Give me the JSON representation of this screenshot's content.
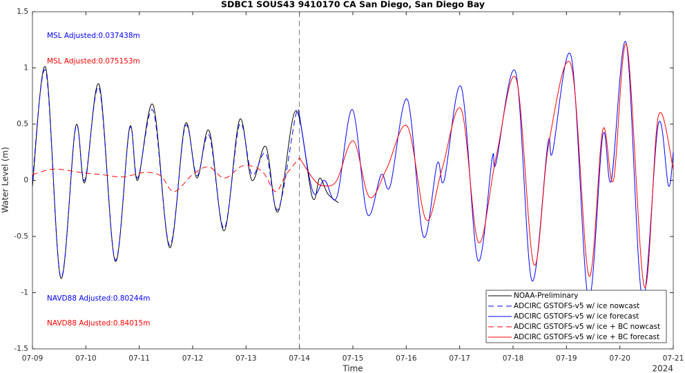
{
  "chart_data": {
    "type": "line",
    "title": "SDBC1 SOUS43 9410170 CA San Diego, San Diego Bay",
    "xlabel": "Time",
    "ylabel": "Water Level (m)",
    "year_label": "2024",
    "xlim": [
      0,
      12
    ],
    "ylim": [
      -1.5,
      1.5
    ],
    "xticks": [
      {
        "value": 0,
        "label": "07-09"
      },
      {
        "value": 1,
        "label": "07-10"
      },
      {
        "value": 2,
        "label": "07-11"
      },
      {
        "value": 3,
        "label": "07-12"
      },
      {
        "value": 4,
        "label": "07-13"
      },
      {
        "value": 5,
        "label": "07-14"
      },
      {
        "value": 6,
        "label": "07-15"
      },
      {
        "value": 7,
        "label": "07-16"
      },
      {
        "value": 8,
        "label": "07-17"
      },
      {
        "value": 9,
        "label": "07-18"
      },
      {
        "value": 10,
        "label": "07-19"
      },
      {
        "value": 11,
        "label": "07-20"
      },
      {
        "value": 12,
        "label": "07-21"
      }
    ],
    "yticks": [
      -1.5,
      -1,
      -0.5,
      0,
      0.5,
      1,
      1.5
    ],
    "vline": 5,
    "legend": "lower right",
    "annotations": [
      {
        "text": "MSL Adjusted:0.037438m",
        "color": "#0000ff"
      },
      {
        "text": "MSL Adjusted:0.075153m",
        "color": "#ff0000"
      },
      {
        "text": "NAVD88 Adjusted:0.80244m",
        "color": "#0000ff"
      },
      {
        "text": "NAVD88 Adjusted:0.84015m",
        "color": "#ff0000"
      }
    ],
    "series": [
      {
        "name": "NOAA-Preliminary",
        "color": "#000000",
        "dash": false,
        "x": [
          0,
          0.25,
          0.53,
          0.81,
          0.98,
          1.25,
          1.55,
          1.82,
          1.97,
          2.26,
          2.57,
          2.86,
          3.08,
          3.31,
          3.59,
          3.88,
          4.11,
          4.37,
          4.6,
          4.93,
          5.24,
          5.38,
          5.53,
          5.73
        ],
        "values": [
          -0.05,
          1.0,
          -0.87,
          0.48,
          -0.02,
          0.85,
          -0.72,
          0.47,
          0.0,
          0.67,
          -0.6,
          0.5,
          0.02,
          0.44,
          -0.45,
          0.54,
          0.0,
          0.3,
          -0.28,
          0.62,
          -0.15,
          0.02,
          -0.12,
          -0.2
        ]
      },
      {
        "name": "ADCIRC GSTOFS-v5 w/ ice nowcast",
        "color": "#0000ff",
        "dash": true,
        "x": [
          0,
          0.25,
          0.53,
          0.81,
          0.98,
          1.25,
          1.55,
          1.82,
          1.97,
          2.26,
          2.57,
          2.86,
          3.08,
          3.31,
          3.59,
          3.88,
          4.11,
          4.37,
          4.6,
          4.93,
          5.0
        ],
        "values": [
          0.0,
          0.97,
          -0.86,
          0.47,
          0.0,
          0.82,
          -0.71,
          0.46,
          0.02,
          0.62,
          -0.58,
          0.48,
          0.04,
          0.4,
          -0.43,
          0.5,
          0.05,
          0.24,
          -0.26,
          0.58,
          0.55
        ]
      },
      {
        "name": "ADCIRC GSTOFS-v5 w/ ice forecast",
        "color": "#0000ff",
        "dash": false,
        "x": [
          5.0,
          5.25,
          5.47,
          5.7,
          5.99,
          6.27,
          6.53,
          6.7,
          7.02,
          7.32,
          7.58,
          7.71,
          8.03,
          8.34,
          8.61,
          8.68,
          9.05,
          9.35,
          9.65,
          9.74,
          10.09,
          10.41,
          10.68,
          10.84,
          11.12,
          11.42,
          11.72,
          11.91,
          12.0
        ],
        "values": [
          0.58,
          -0.1,
          0.0,
          -0.15,
          0.63,
          -0.3,
          0.05,
          -0.05,
          0.72,
          -0.5,
          0.15,
          0.0,
          0.83,
          -0.71,
          0.2,
          0.15,
          0.96,
          -0.89,
          0.32,
          0.25,
          1.1,
          -1.05,
          0.4,
          0.0,
          1.22,
          -1.05,
          0.5,
          -0.05,
          0.25
        ]
      },
      {
        "name": "ADCIRC GSTOFS-v5 w/ ice + BC nowcast",
        "color": "#ff0000",
        "dash": true,
        "x": [
          0,
          0.4,
          0.9,
          1.3,
          1.7,
          2.1,
          2.4,
          2.65,
          3.0,
          3.3,
          3.6,
          3.95,
          4.3,
          4.55,
          4.75,
          5.0
        ],
        "values": [
          0.05,
          0.1,
          0.07,
          0.05,
          0.03,
          0.07,
          0.04,
          -0.1,
          0.05,
          0.12,
          0.02,
          0.13,
          0.08,
          -0.1,
          0.05,
          0.2
        ]
      },
      {
        "name": "ADCIRC GSTOFS-v5 w/ ice + BC forecast",
        "color": "#ff0000",
        "dash": false,
        "x": [
          5.0,
          5.28,
          5.47,
          5.7,
          6.01,
          6.31,
          6.63,
          7.02,
          7.37,
          7.67,
          8.03,
          8.35,
          8.68,
          9.06,
          9.39,
          9.67,
          10.09,
          10.42,
          10.68,
          10.88,
          11.13,
          11.46,
          11.72,
          12.0
        ],
        "values": [
          0.2,
          0.0,
          -0.05,
          0.0,
          0.35,
          -0.15,
          0.1,
          0.48,
          -0.35,
          0.1,
          0.63,
          -0.55,
          0.2,
          0.9,
          -0.75,
          0.33,
          1.02,
          -0.85,
          0.45,
          0.0,
          1.2,
          -0.95,
          0.57,
          0.1
        ]
      }
    ]
  }
}
